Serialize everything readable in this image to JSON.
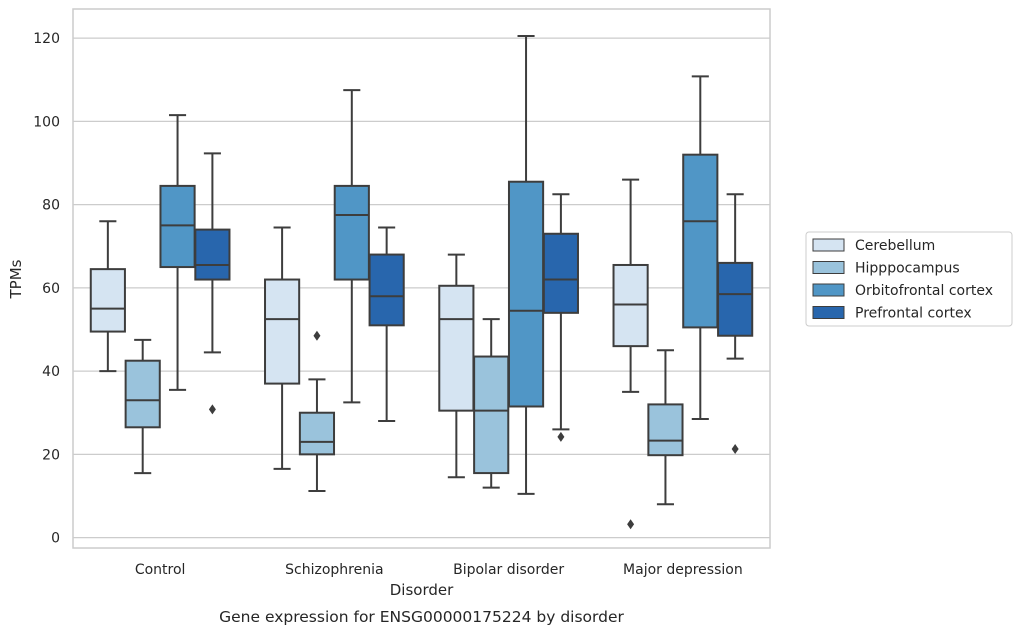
{
  "chart_data": {
    "type": "box",
    "title": "",
    "caption": "Gene expression for ENSG00000175224 by disorder",
    "xlabel": "Disorder",
    "ylabel": "TPMs",
    "ylim": [
      -2.5,
      127
    ],
    "yticks": [
      0,
      20,
      40,
      60,
      80,
      100,
      120
    ],
    "grid": "horizontal",
    "legend_placement": "right",
    "categories": [
      "Control",
      "Schizophrenia",
      "Bipolar disorder",
      "Major depression"
    ],
    "series": [
      {
        "name": "Cerebellum",
        "color": "#d5e4f2",
        "boxes": [
          {
            "whisker_low": 40,
            "q1": 49.5,
            "median": 55,
            "q3": 64.5,
            "whisker_high": 76,
            "outliers": []
          },
          {
            "whisker_low": 16.5,
            "q1": 37,
            "median": 52.5,
            "q3": 62,
            "whisker_high": 74.5,
            "outliers": []
          },
          {
            "whisker_low": 14.5,
            "q1": 30.5,
            "median": 52.5,
            "q3": 60.5,
            "whisker_high": 68,
            "outliers": []
          },
          {
            "whisker_low": 35,
            "q1": 46,
            "median": 56,
            "q3": 65.5,
            "whisker_high": 86,
            "outliers": [
              3.2
            ]
          }
        ]
      },
      {
        "name": "Hipppocampus",
        "color": "#9ac3dc",
        "boxes": [
          {
            "whisker_low": 15.5,
            "q1": 26.5,
            "median": 33,
            "q3": 42.5,
            "whisker_high": 47.5,
            "outliers": []
          },
          {
            "whisker_low": 11.2,
            "q1": 20,
            "median": 23,
            "q3": 30,
            "whisker_high": 38,
            "outliers": [
              48.5
            ]
          },
          {
            "whisker_low": 12,
            "q1": 15.5,
            "median": 30.5,
            "q3": 43.5,
            "whisker_high": 52.5,
            "outliers": []
          },
          {
            "whisker_low": 8,
            "q1": 19.8,
            "median": 23.3,
            "q3": 32,
            "whisker_high": 45,
            "outliers": []
          }
        ]
      },
      {
        "name": "Orbitofrontal cortex",
        "color": "#5096c6",
        "boxes": [
          {
            "whisker_low": 35.5,
            "q1": 65,
            "median": 75,
            "q3": 84.5,
            "whisker_high": 101.5,
            "outliers": []
          },
          {
            "whisker_low": 32.5,
            "q1": 62,
            "median": 77.5,
            "q3": 84.5,
            "whisker_high": 107.5,
            "outliers": []
          },
          {
            "whisker_low": 10.5,
            "q1": 31.5,
            "median": 54.5,
            "q3": 85.5,
            "whisker_high": 120.5,
            "outliers": []
          },
          {
            "whisker_low": 28.5,
            "q1": 50.5,
            "median": 76,
            "q3": 92,
            "whisker_high": 110.8,
            "outliers": []
          }
        ]
      },
      {
        "name": "Prefrontal cortex",
        "color": "#2866ad",
        "boxes": [
          {
            "whisker_low": 44.5,
            "q1": 62,
            "median": 65.5,
            "q3": 74,
            "whisker_high": 92.3,
            "outliers": [
              30.8
            ]
          },
          {
            "whisker_low": 28,
            "q1": 51,
            "median": 58,
            "q3": 68,
            "whisker_high": 74.5,
            "outliers": []
          },
          {
            "whisker_low": 26,
            "q1": 54,
            "median": 62,
            "q3": 73,
            "whisker_high": 82.5,
            "outliers": [
              24.2
            ]
          },
          {
            "whisker_low": 43,
            "q1": 48.5,
            "median": 58.5,
            "q3": 66,
            "whisker_high": 82.5,
            "outliers": [
              21.3
            ]
          }
        ]
      }
    ]
  }
}
